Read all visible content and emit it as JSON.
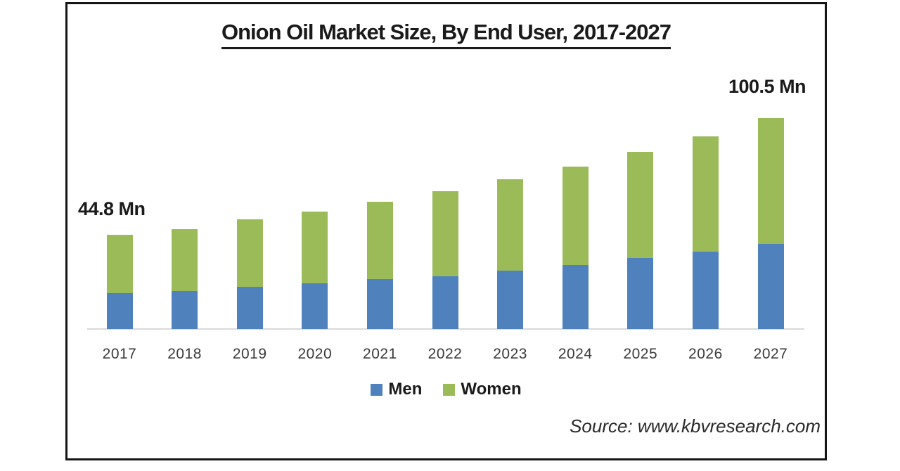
{
  "chart_data": {
    "type": "bar",
    "stacked": true,
    "title": "Onion Oil Market Size, By End User, 2017-2027",
    "categories": [
      "2017",
      "2018",
      "2019",
      "2020",
      "2021",
      "2022",
      "2023",
      "2024",
      "2025",
      "2026",
      "2027"
    ],
    "series": [
      {
        "name": "Men",
        "color": "#4F81BD",
        "values": [
          17.1,
          18.1,
          20.1,
          21.8,
          23.8,
          25.1,
          27.8,
          30.4,
          33.8,
          36.8,
          40.5
        ]
      },
      {
        "name": "Women",
        "color": "#9BBB59",
        "values": [
          27.7,
          29.4,
          32.1,
          34.1,
          36.7,
          40.5,
          43.4,
          46.8,
          50.5,
          54.8,
          60.0
        ]
      }
    ],
    "totals": [
      44.8,
      47.5,
      52.2,
      55.9,
      60.5,
      65.6,
      71.2,
      77.2,
      84.3,
      91.6,
      100.5
    ],
    "unit": "Mn",
    "annotations": [
      {
        "text": "44.8 Mn",
        "category": "2017"
      },
      {
        "text": "100.5 Mn",
        "category": "2027"
      }
    ],
    "legend_position": "bottom",
    "grid": false,
    "ylim": [
      0,
      105
    ],
    "xlabel": "",
    "ylabel": ""
  },
  "source": {
    "label": "Source: www.kbvresearch.com"
  }
}
